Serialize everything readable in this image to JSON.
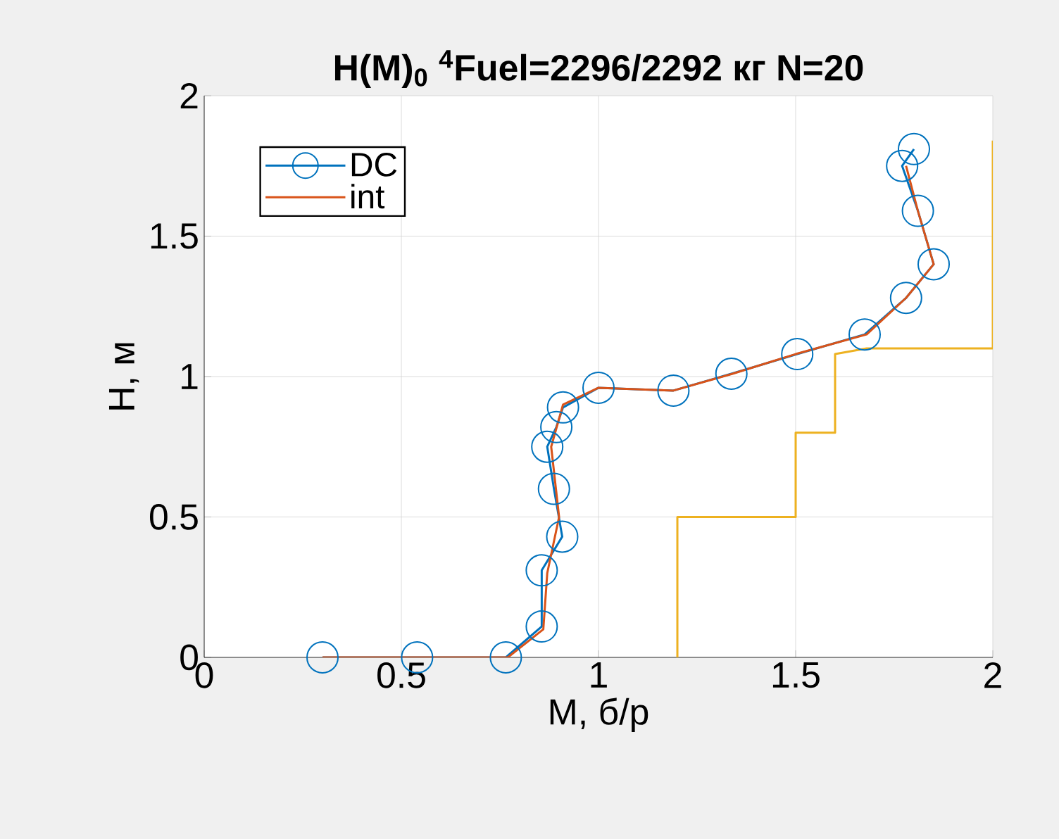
{
  "chart_data": {
    "type": "line",
    "title": "H(M)$_{0}$ $^{4}$Fuel=2296/2292 кг  N=20",
    "xlabel": "M, б/р",
    "ylabel": "H, м",
    "xlim": [
      0,
      2
    ],
    "ylim": [
      0,
      2
    ],
    "xticks": [
      0,
      0.5,
      1,
      1.5,
      2
    ],
    "yticks": [
      0,
      0.5,
      1,
      1.5,
      2
    ],
    "grid": true,
    "legend": "top left",
    "series": [
      {
        "name": "DC",
        "color": "#0072bd",
        "marker": "circle",
        "x": [
          0.3,
          0.54,
          0.765,
          0.856,
          0.856,
          0.908,
          0.887,
          0.87,
          0.893,
          0.91,
          1.0,
          1.19,
          1.337,
          1.504,
          1.675,
          1.78,
          1.85,
          1.81,
          1.77,
          1.8
        ],
        "values": [
          0,
          0,
          0,
          0.11,
          0.31,
          0.43,
          0.6,
          0.75,
          0.82,
          0.89,
          0.96,
          0.95,
          1.01,
          1.08,
          1.15,
          1.28,
          1.4,
          1.59,
          1.75,
          1.81
        ]
      },
      {
        "name": "int",
        "color": "#d95319",
        "marker": "none",
        "x": [
          0.3,
          0.77,
          0.86,
          0.87,
          0.9,
          0.88,
          0.91,
          1.0,
          1.19,
          1.34,
          1.5,
          1.68,
          1.78,
          1.85,
          1.81,
          1.78
        ],
        "values": [
          0,
          0,
          0.1,
          0.3,
          0.5,
          0.75,
          0.9,
          0.96,
          0.95,
          1.01,
          1.08,
          1.15,
          1.28,
          1.4,
          1.59,
          1.75
        ]
      },
      {
        "color": "#edb120",
        "marker": "none",
        "x": [
          1.2,
          1.2,
          1.5,
          1.5,
          1.6,
          1.6,
          1.68,
          2,
          2
        ],
        "values": [
          0,
          0.5,
          0.5,
          0.8,
          0.8,
          1.08,
          1.1,
          1.1,
          1.84
        ]
      }
    ]
  }
}
